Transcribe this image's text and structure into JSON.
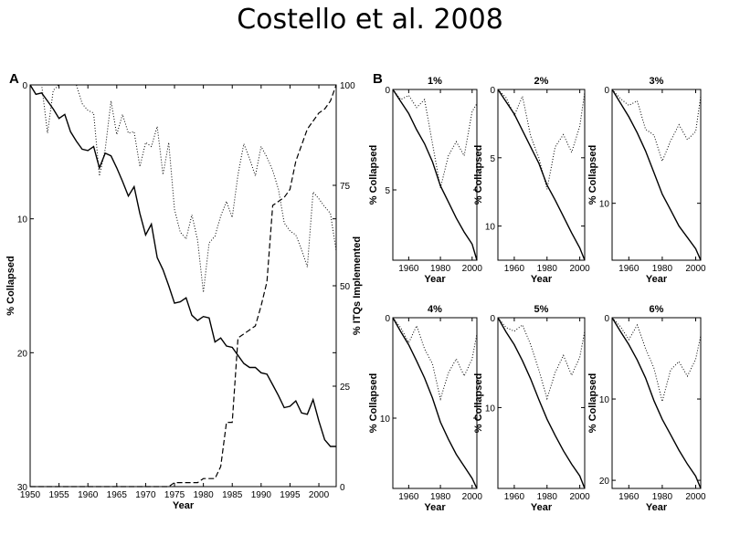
{
  "title": "Costello et al. 2008",
  "panel_a_letter": "A",
  "panel_b_letter": "B",
  "chart_data": [
    {
      "type": "line",
      "panel": "A",
      "xlabel": "Year",
      "ylabel": "% Collapsed",
      "y2label": "% ITQs Implemented",
      "xlim": [
        1950,
        2003
      ],
      "ylim": [
        0,
        30
      ],
      "y_inverted": true,
      "y2lim": [
        0,
        100
      ],
      "xticks": [
        1950,
        1955,
        1960,
        1965,
        1970,
        1975,
        1980,
        1985,
        1990,
        1995,
        2000
      ],
      "yticks": [
        0,
        10,
        20,
        30
      ],
      "y2ticks": [
        0,
        25,
        50,
        75,
        100
      ],
      "series": [
        {
          "style": "solid",
          "axis": "left",
          "x": [
            1950,
            1951,
            1952,
            1953,
            1954,
            1955,
            1956,
            1957,
            1958,
            1959,
            1960,
            1961,
            1962,
            1963,
            1964,
            1965,
            1966,
            1967,
            1968,
            1969,
            1970,
            1971,
            1972,
            1973,
            1974,
            1975,
            1976,
            1977,
            1978,
            1979,
            1980,
            1981,
            1982,
            1983,
            1984,
            1985,
            1986,
            1987,
            1988,
            1989,
            1990,
            1991,
            1992,
            1993,
            1994,
            1995,
            1996,
            1997,
            1998,
            1999,
            2000,
            2001,
            2002,
            2003
          ],
          "values": [
            0,
            0.7,
            0.6,
            1.2,
            1.8,
            2.5,
            2.2,
            3.5,
            4.2,
            4.8,
            4.9,
            4.6,
            6.2,
            5.1,
            5.3,
            6.2,
            7.2,
            8.3,
            7.6,
            9.6,
            11.2,
            10.4,
            12.9,
            13.8,
            15,
            16.3,
            16.2,
            15.9,
            17.2,
            17.6,
            17.3,
            17.4,
            19.2,
            18.9,
            19.5,
            19.6,
            20.2,
            20.8,
            21.1,
            21.1,
            21.5,
            21.6,
            22.4,
            23.2,
            24.1,
            24,
            23.6,
            24.5,
            24.6,
            23.5,
            25.1,
            26.5,
            27,
            27
          ]
        },
        {
          "style": "dotted",
          "axis": "left",
          "x": [
            1950,
            1951,
            1952,
            1953,
            1954,
            1955,
            1956,
            1957,
            1958,
            1959,
            1960,
            1961,
            1962,
            1963,
            1964,
            1965,
            1966,
            1967,
            1968,
            1969,
            1970,
            1971,
            1972,
            1973,
            1974,
            1975,
            1976,
            1977,
            1978,
            1979,
            1980,
            1981,
            1982,
            1983,
            1984,
            1985,
            1986,
            1987,
            1988,
            1989,
            1990,
            1991,
            1992,
            1993,
            1994,
            1995,
            1996,
            1997,
            1998,
            1999,
            2000,
            2001,
            2002,
            2003
          ],
          "values": [
            0,
            0,
            0,
            3.6,
            0.4,
            0,
            0,
            0,
            0,
            1.4,
            1.9,
            2.1,
            6.8,
            4.8,
            1.2,
            3.7,
            2.2,
            3.6,
            3.5,
            6.1,
            4.3,
            4.6,
            3.1,
            6.7,
            4.3,
            9.3,
            11,
            11.5,
            9.7,
            11.6,
            15.5,
            11.8,
            11.3,
            9.8,
            8.7,
            9.9,
            6.7,
            4.4,
            5.5,
            6.8,
            4.6,
            5.4,
            6.4,
            7.8,
            10.3,
            10.9,
            11.2,
            12.3,
            13.6,
            8,
            8.5,
            9.1,
            9.6,
            12.4
          ]
        },
        {
          "style": "dashed",
          "axis": "right",
          "x": [
            1950,
            1974,
            1975,
            1979,
            1980,
            1982,
            1983,
            1984,
            1985,
            1986,
            1987,
            1988,
            1989,
            1990,
            1991,
            1992,
            1993,
            1994,
            1995,
            1996,
            1997,
            1998,
            1999,
            2000,
            2001,
            2002,
            2003
          ],
          "values": [
            0,
            0,
            1,
            1,
            2,
            2,
            5,
            16,
            16,
            37,
            38,
            39,
            40,
            45,
            51,
            70,
            71,
            72,
            74,
            81,
            85,
            89,
            91,
            93,
            94,
            96,
            100
          ]
        }
      ]
    },
    {
      "type": "line",
      "panel": "B",
      "title": "1%",
      "xlabel": "Year",
      "ylabel": "% Collapsed",
      "xlim": [
        1950,
        2003
      ],
      "ylim": [
        0,
        8.5
      ],
      "y_inverted": true,
      "xticks": [
        1960,
        1980,
        2000
      ],
      "yticks": [
        0,
        5
      ],
      "series": [
        {
          "style": "solid",
          "x": [
            1950,
            1955,
            1960,
            1965,
            1970,
            1975,
            1980,
            1985,
            1990,
            1995,
            2000,
            2003
          ],
          "values": [
            0,
            0.6,
            1.2,
            2,
            2.7,
            3.6,
            4.8,
            5.6,
            6.4,
            7.1,
            7.7,
            8.5
          ]
        },
        {
          "style": "dotted",
          "x": [
            1950,
            1955,
            1960,
            1965,
            1970,
            1975,
            1980,
            1985,
            1990,
            1995,
            2000,
            2003
          ],
          "values": [
            0,
            0.5,
            0.3,
            0.9,
            0.5,
            2.7,
            4.9,
            3.3,
            2.6,
            3.3,
            1.1,
            0.7
          ]
        }
      ]
    },
    {
      "type": "line",
      "panel": "B",
      "title": "2%",
      "xlabel": "Year",
      "ylabel": "% Collapsed",
      "xlim": [
        1950,
        2003
      ],
      "ylim": [
        0,
        12.5
      ],
      "y_inverted": true,
      "xticks": [
        1960,
        1980,
        2000
      ],
      "yticks": [
        0,
        5,
        10
      ],
      "series": [
        {
          "style": "solid",
          "x": [
            1950,
            1955,
            1960,
            1965,
            1970,
            1975,
            1980,
            1985,
            1990,
            1995,
            2000,
            2003
          ],
          "values": [
            0,
            0.9,
            1.8,
            3,
            4.2,
            5.4,
            7,
            8.1,
            9.3,
            10.5,
            11.6,
            12.5
          ]
        },
        {
          "style": "dotted",
          "x": [
            1950,
            1955,
            1960,
            1965,
            1970,
            1975,
            1980,
            1985,
            1990,
            1995,
            2000,
            2003
          ],
          "values": [
            0,
            0.6,
            1.9,
            0.5,
            3.4,
            5,
            7.3,
            4.2,
            3.3,
            4.6,
            2.7,
            0.2
          ]
        }
      ]
    },
    {
      "type": "line",
      "panel": "B",
      "title": "3%",
      "xlabel": "Year",
      "ylabel": "% Collapsed",
      "xlim": [
        1950,
        2003
      ],
      "ylim": [
        0,
        15
      ],
      "y_inverted": true,
      "xticks": [
        1960,
        1980,
        2000
      ],
      "yticks": [
        0,
        10
      ],
      "series": [
        {
          "style": "solid",
          "x": [
            1950,
            1955,
            1960,
            1965,
            1970,
            1975,
            1980,
            1985,
            1990,
            1995,
            2000,
            2003
          ],
          "values": [
            0,
            1.2,
            2.4,
            3.8,
            5.4,
            7.3,
            9.2,
            10.6,
            12,
            13,
            14,
            15
          ]
        },
        {
          "style": "dotted",
          "x": [
            1950,
            1955,
            1960,
            1965,
            1970,
            1975,
            1980,
            1985,
            1990,
            1995,
            2000,
            2003
          ],
          "values": [
            0,
            0.8,
            1.4,
            1,
            3.5,
            4,
            6.3,
            4.5,
            3.1,
            4.4,
            3.7,
            0.6
          ]
        }
      ]
    },
    {
      "type": "line",
      "panel": "B",
      "title": "4%",
      "xlabel": "Year",
      "ylabel": "% Collapsed",
      "xlim": [
        1950,
        2003
      ],
      "ylim": [
        0,
        17
      ],
      "y_inverted": true,
      "xticks": [
        1960,
        1980,
        2000
      ],
      "yticks": [
        0,
        10
      ],
      "series": [
        {
          "style": "solid",
          "x": [
            1950,
            1955,
            1960,
            1965,
            1970,
            1975,
            1980,
            1985,
            1990,
            1995,
            2000,
            2003
          ],
          "values": [
            0,
            1.4,
            2.7,
            4.3,
            6,
            8,
            10.4,
            12.1,
            13.6,
            14.8,
            16,
            17
          ]
        },
        {
          "style": "dotted",
          "x": [
            1950,
            1955,
            1960,
            1965,
            1970,
            1975,
            1980,
            1985,
            1990,
            1995,
            2000,
            2003
          ],
          "values": [
            0,
            1,
            2.5,
            0.8,
            3.1,
            4.6,
            8.1,
            5.5,
            4.1,
            5.8,
            4.1,
            1.6
          ]
        }
      ]
    },
    {
      "type": "line",
      "panel": "B",
      "title": "5%",
      "xlabel": "Year",
      "ylabel": "% Collapsed",
      "xlim": [
        1950,
        2003
      ],
      "ylim": [
        0,
        19
      ],
      "y_inverted": true,
      "xticks": [
        1960,
        1980,
        2000
      ],
      "yticks": [
        0,
        10
      ],
      "series": [
        {
          "style": "solid",
          "x": [
            1950,
            1955,
            1960,
            1965,
            1970,
            1975,
            1980,
            1985,
            1990,
            1995,
            2000,
            2003
          ],
          "values": [
            0,
            1.6,
            3,
            4.8,
            6.8,
            9.1,
            11.3,
            13.1,
            14.8,
            16.3,
            17.6,
            19
          ]
        },
        {
          "style": "dotted",
          "x": [
            1950,
            1955,
            1960,
            1965,
            1970,
            1975,
            1980,
            1985,
            1990,
            1995,
            2000,
            2003
          ],
          "values": [
            0,
            1.1,
            1.5,
            0.8,
            3,
            5.8,
            9,
            6.1,
            4.2,
            6.4,
            4.4,
            1.5
          ]
        }
      ]
    },
    {
      "type": "line",
      "panel": "B",
      "title": "6%",
      "xlabel": "Year",
      "ylabel": "% Collapsed",
      "xlim": [
        1950,
        2003
      ],
      "ylim": [
        0,
        21
      ],
      "y_inverted": true,
      "xticks": [
        1960,
        1980,
        2000
      ],
      "yticks": [
        0,
        10,
        20
      ],
      "series": [
        {
          "style": "solid",
          "x": [
            1950,
            1955,
            1960,
            1965,
            1970,
            1975,
            1980,
            1985,
            1990,
            1995,
            2000,
            2003
          ],
          "values": [
            0,
            1.7,
            3.3,
            5.2,
            7.4,
            10.2,
            12.5,
            14.4,
            16.3,
            18,
            19.5,
            21
          ]
        },
        {
          "style": "dotted",
          "x": [
            1950,
            1955,
            1960,
            1965,
            1970,
            1975,
            1980,
            1985,
            1990,
            1995,
            2000,
            2003
          ],
          "values": [
            0,
            1.1,
            2.7,
            0.9,
            3.8,
            6.2,
            10.3,
            6.4,
            5.4,
            7.2,
            5.1,
            2.2
          ]
        }
      ]
    }
  ]
}
